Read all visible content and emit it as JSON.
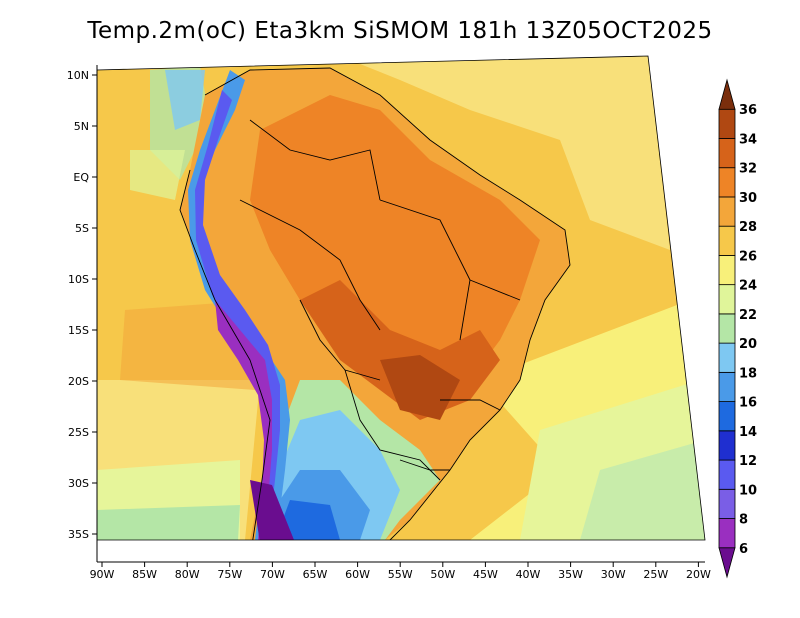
{
  "title": "Temp.2m(oC) Eta3km SiSMOM 181h 13Z05OCT2025",
  "map": {
    "lon_ticks": [
      "90W",
      "85W",
      "80W",
      "75W",
      "70W",
      "65W",
      "60W",
      "55W",
      "50W",
      "45W",
      "40W",
      "35W",
      "30W",
      "25W",
      "20W"
    ],
    "lat_ticks": [
      "10N",
      "5N",
      "EQ",
      "5S",
      "10S",
      "15S",
      "20S",
      "25S",
      "30S",
      "35S"
    ]
  },
  "colorbar": {
    "labels": [
      "6",
      "8",
      "10",
      "12",
      "14",
      "16",
      "18",
      "20",
      "22",
      "24",
      "26",
      "28",
      "30",
      "32",
      "34",
      "36"
    ],
    "colors": [
      "#6a0d8f",
      "#9a2fc0",
      "#7a5ee6",
      "#5a5af0",
      "#1f2fd0",
      "#1e6ae0",
      "#4a9ae8",
      "#7ec8f2",
      "#b4e6a6",
      "#e0f59a",
      "#f8f07a",
      "#f6c84a",
      "#f3a63a",
      "#ee8426",
      "#d6631a",
      "#b04812",
      "#7a2e0c"
    ]
  }
}
